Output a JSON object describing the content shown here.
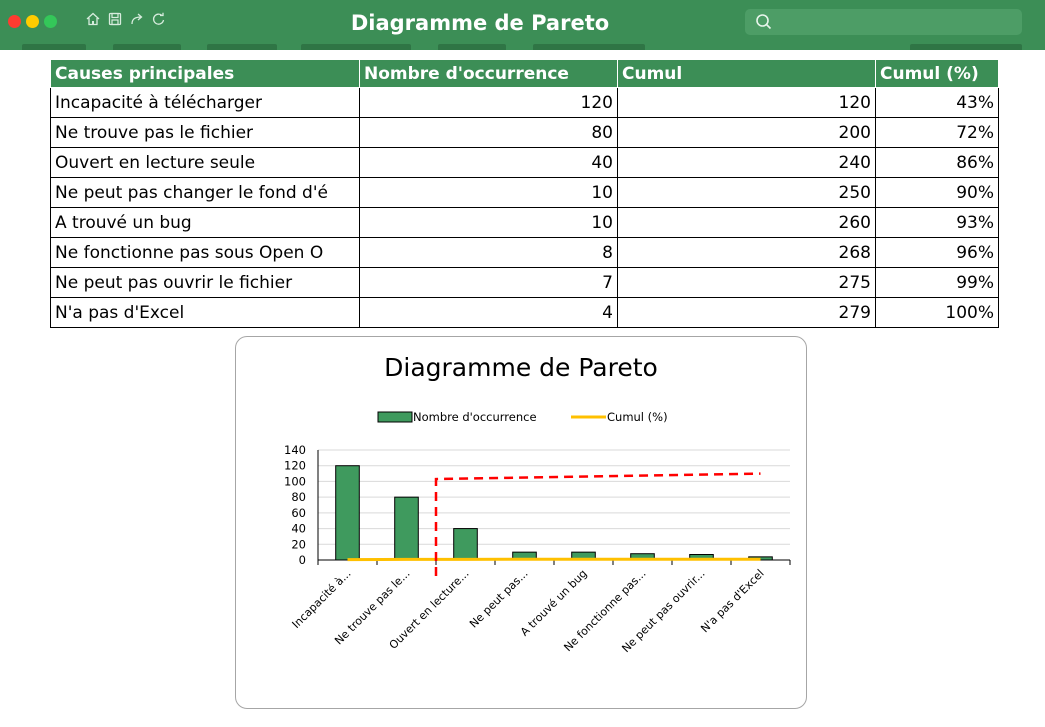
{
  "window": {
    "title": "Diagramme de Pareto",
    "controls": {
      "close_color": "#ff3b30",
      "minimize_color": "#ffcc00",
      "zoom_color": "#34c759"
    },
    "toolbar_icons": [
      "home-icon",
      "save-icon",
      "redo-icon",
      "refresh-icon"
    ],
    "search_placeholder": ""
  },
  "colors": {
    "accent": "#3c8e56",
    "bar_fill": "#3f9a5e",
    "cumul_line": "#ffc000",
    "cut_line": "#ff0000"
  },
  "table": {
    "headers": [
      "Causes principales",
      "Nombre d'occurrence",
      "Cumul",
      "Cumul (%)"
    ],
    "rows": [
      [
        "Incapacité à télécharger",
        "120",
        "120",
        "43%"
      ],
      [
        "Ne trouve pas le fichier",
        "80",
        "200",
        "72%"
      ],
      [
        "Ouvert en lecture seule",
        "40",
        "240",
        "86%"
      ],
      [
        "Ne peut pas changer le fond d'é",
        "10",
        "250",
        "90%"
      ],
      [
        "A trouvé un bug",
        "10",
        "260",
        "93%"
      ],
      [
        "Ne fonctionne pas sous Open O",
        "8",
        "268",
        "96%"
      ],
      [
        "Ne peut pas ouvrir le fichier",
        "7",
        "275",
        "99%"
      ],
      [
        "N'a pas d'Excel",
        "4",
        "279",
        "100%"
      ]
    ]
  },
  "chart_data": {
    "type": "bar",
    "title": "Diagramme de Pareto",
    "categories": [
      "Incapacité à...",
      "Ne trouve pas le...",
      "Ouvert en lecture...",
      "Ne peut pas...",
      "A trouvé un bug",
      "Ne fonctionne pas...",
      "Ne peut pas ouvrir...",
      "N'a pas d'Excel"
    ],
    "series": [
      {
        "name": "Nombre d'occurrence",
        "type": "bar",
        "values": [
          120,
          80,
          40,
          10,
          10,
          8,
          7,
          4
        ]
      },
      {
        "name": "Cumul (%)",
        "type": "line",
        "values": [
          0.43,
          0.72,
          0.86,
          0.9,
          0.93,
          0.96,
          0.99,
          1.0
        ]
      }
    ],
    "yticks": [
      0,
      20,
      40,
      60,
      80,
      100,
      120,
      140
    ],
    "ylim": [
      0,
      140
    ],
    "grid": true,
    "legend_position": "top",
    "cutoff_marker": {
      "after_category_index": 1,
      "line_value_start": 103,
      "line_value_end": 110
    }
  }
}
